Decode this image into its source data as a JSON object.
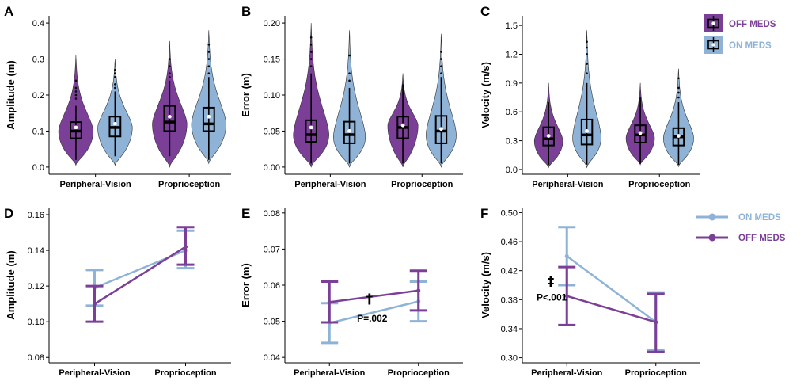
{
  "colors": {
    "off_meds": "#7B3F98",
    "on_meds": "#8FB3D7",
    "axis": "#000000",
    "dot": "#ffffff"
  },
  "legend_top": {
    "off_label": "OFF MEDS",
    "on_label": "ON MEDS"
  },
  "legend_bottom": {
    "on_label": "ON MEDS",
    "off_label": "OFF MEDS"
  },
  "chart_data": [
    {
      "panel": "A",
      "type": "violin",
      "ylabel": "Amplitude (m)",
      "ylim": [
        -0.02,
        0.42
      ],
      "yticks": [
        0.0,
        0.1,
        0.2,
        0.3,
        0.4
      ],
      "ytick_labels": [
        "0.0",
        "0.1",
        "0.2",
        "0.3",
        "0.4"
      ],
      "categories": [
        "Peripheral-Vision",
        "Proprioception"
      ],
      "series": [
        {
          "name": "OFF MEDS",
          "groups": [
            {
              "min": 0.005,
              "q1": 0.08,
              "median": 0.1,
              "q3": 0.125,
              "max": 0.31,
              "mean": 0.11,
              "wlo": 0.02,
              "whi": 0.17,
              "mode": 0.1,
              "width": 0.95,
              "outliers": [
                0.19,
                0.2,
                0.21,
                0.22,
                0.24
              ]
            },
            {
              "min": 0.0,
              "q1": 0.1,
              "median": 0.125,
              "q3": 0.17,
              "max": 0.35,
              "mean": 0.14,
              "wlo": 0.03,
              "whi": 0.24,
              "mode": 0.12,
              "width": 0.95,
              "outliers": [
                0.25,
                0.26,
                0.28,
                0.3
              ]
            }
          ]
        },
        {
          "name": "ON MEDS",
          "groups": [
            {
              "min": 0.005,
              "q1": 0.085,
              "median": 0.11,
              "q3": 0.14,
              "max": 0.3,
              "mean": 0.12,
              "wlo": 0.03,
              "whi": 0.21,
              "mode": 0.11,
              "width": 0.95,
              "outliers": [
                0.22,
                0.23,
                0.25,
                0.26,
                0.27
              ]
            },
            {
              "min": 0.01,
              "q1": 0.1,
              "median": 0.12,
              "q3": 0.165,
              "max": 0.38,
              "mean": 0.14,
              "wlo": 0.02,
              "whi": 0.25,
              "mode": 0.12,
              "width": 0.95,
              "outliers": [
                0.26,
                0.28,
                0.3,
                0.32,
                0.34
              ]
            }
          ]
        }
      ]
    },
    {
      "panel": "B",
      "type": "violin",
      "ylabel": "Error (m)",
      "ylim": [
        -0.01,
        0.21
      ],
      "yticks": [
        0.0,
        0.05,
        0.1,
        0.15,
        0.2
      ],
      "ytick_labels": [
        "0.00",
        "0.05",
        "0.10",
        "0.15",
        "0.20"
      ],
      "categories": [
        "Peripheral-Vision",
        "Proprioception"
      ],
      "series": [
        {
          "name": "OFF MEDS",
          "groups": [
            {
              "min": 0.0,
              "q1": 0.035,
              "median": 0.045,
              "q3": 0.065,
              "max": 0.2,
              "mean": 0.055,
              "wlo": 0.005,
              "whi": 0.13,
              "mode": 0.045,
              "width": 1.0,
              "outliers": [
                0.14,
                0.15,
                0.16,
                0.17,
                0.18
              ]
            },
            {
              "min": 0.0,
              "q1": 0.04,
              "median": 0.055,
              "q3": 0.07,
              "max": 0.13,
              "mean": 0.058,
              "wlo": 0.005,
              "whi": 0.115,
              "mode": 0.058,
              "width": 0.85,
              "outliers": []
            }
          ]
        },
        {
          "name": "ON MEDS",
          "groups": [
            {
              "min": 0.0,
              "q1": 0.033,
              "median": 0.045,
              "q3": 0.063,
              "max": 0.19,
              "mean": 0.05,
              "wlo": 0.005,
              "whi": 0.11,
              "mode": 0.042,
              "width": 0.9,
              "outliers": [
                0.12,
                0.13,
                0.155
              ]
            },
            {
              "min": 0.0,
              "q1": 0.033,
              "median": 0.05,
              "q3": 0.071,
              "max": 0.185,
              "mean": 0.053,
              "wlo": 0.005,
              "whi": 0.125,
              "mode": 0.045,
              "width": 0.85,
              "outliers": [
                0.13,
                0.14,
                0.15,
                0.16
              ]
            }
          ]
        }
      ]
    },
    {
      "panel": "C",
      "type": "violin",
      "ylabel": "Velocity (m/s)",
      "ylim": [
        -0.05,
        1.6
      ],
      "yticks": [
        0.0,
        0.3,
        0.6,
        0.9,
        1.2,
        1.5
      ],
      "ytick_labels": [
        "0.0",
        "0.3",
        "0.6",
        "0.9",
        "1.2",
        "1.5"
      ],
      "categories": [
        "Peripheral-Vision",
        "Proprioception"
      ],
      "series": [
        {
          "name": "OFF MEDS",
          "groups": [
            {
              "min": 0.02,
              "q1": 0.25,
              "median": 0.32,
              "q3": 0.44,
              "max": 0.9,
              "mean": 0.35,
              "wlo": 0.05,
              "whi": 0.7,
              "mode": 0.3,
              "width": 0.8,
              "outliers": []
            },
            {
              "min": 0.05,
              "q1": 0.28,
              "median": 0.36,
              "q3": 0.46,
              "max": 0.9,
              "mean": 0.38,
              "wlo": 0.06,
              "whi": 0.75,
              "mode": 0.33,
              "width": 0.8,
              "outliers": []
            }
          ]
        },
        {
          "name": "ON MEDS",
          "groups": [
            {
              "min": 0.02,
              "q1": 0.26,
              "median": 0.36,
              "q3": 0.52,
              "max": 1.45,
              "mean": 0.4,
              "wlo": 0.05,
              "whi": 0.9,
              "mode": 0.33,
              "width": 0.8,
              "outliers": [
                1.0,
                1.1,
                1.2,
                1.27,
                1.33
              ]
            },
            {
              "min": 0.03,
              "q1": 0.25,
              "median": 0.34,
              "q3": 0.43,
              "max": 1.05,
              "mean": 0.35,
              "wlo": 0.05,
              "whi": 0.7,
              "mode": 0.33,
              "width": 0.85,
              "outliers": [
                0.75,
                0.8,
                0.85,
                0.95
              ]
            }
          ]
        }
      ]
    },
    {
      "panel": "D",
      "type": "line",
      "ylabel": "Amplitude (m)",
      "ylim": [
        0.077,
        0.164
      ],
      "yticks": [
        0.08,
        0.1,
        0.12,
        0.14,
        0.16
      ],
      "ytick_labels": [
        "0.08",
        "0.10",
        "0.12",
        "0.14",
        "0.16"
      ],
      "categories": [
        "Peripheral-Vision",
        "Proprioception"
      ],
      "series": [
        {
          "name": "ON MEDS",
          "values": [
            0.119,
            0.14
          ],
          "err_low": [
            0.109,
            0.13
          ],
          "err_high": [
            0.129,
            0.151
          ]
        },
        {
          "name": "OFF MEDS",
          "values": [
            0.11,
            0.142
          ],
          "err_low": [
            0.1,
            0.132
          ],
          "err_high": [
            0.12,
            0.153
          ]
        }
      ],
      "annotations": []
    },
    {
      "panel": "E",
      "type": "line",
      "ylabel": "Error (m)",
      "ylim": [
        0.0385,
        0.0815
      ],
      "yticks": [
        0.04,
        0.05,
        0.06,
        0.07,
        0.08
      ],
      "ytick_labels": [
        "0.04",
        "0.05",
        "0.06",
        "0.07",
        "0.08"
      ],
      "categories": [
        "Peripheral-Vision",
        "Proprioception"
      ],
      "series": [
        {
          "name": "ON MEDS",
          "values": [
            0.0495,
            0.0555
          ],
          "err_low": [
            0.044,
            0.05
          ],
          "err_high": [
            0.055,
            0.061
          ]
        },
        {
          "name": "OFF MEDS",
          "values": [
            0.0553,
            0.0585
          ],
          "err_low": [
            0.0497,
            0.053
          ],
          "err_high": [
            0.061,
            0.064
          ]
        }
      ],
      "annotations": [
        {
          "text": "†",
          "x": 1.45,
          "y": 0.0558,
          "kind": "symbol"
        },
        {
          "text": "P=.002",
          "x": 1.48,
          "y": 0.0508,
          "kind": "text"
        }
      ]
    },
    {
      "panel": "F",
      "type": "line",
      "ylabel": "Velocity (m/s)",
      "ylim": [
        0.293,
        0.507
      ],
      "yticks": [
        0.3,
        0.34,
        0.38,
        0.42,
        0.46,
        0.5
      ],
      "ytick_labels": [
        "0.30",
        "0.34",
        "0.38",
        "0.42",
        "0.46",
        "0.50"
      ],
      "categories": [
        "Peripheral-Vision",
        "Proprioception"
      ],
      "series": [
        {
          "name": "ON MEDS",
          "values": [
            0.44,
            0.349
          ],
          "err_low": [
            0.4,
            0.31
          ],
          "err_high": [
            0.48,
            0.39
          ]
        },
        {
          "name": "OFF MEDS",
          "values": [
            0.385,
            0.349
          ],
          "err_low": [
            0.345,
            0.308
          ],
          "err_high": [
            0.425,
            0.388
          ]
        }
      ],
      "annotations": [
        {
          "text": "‡",
          "x": 0.82,
          "y": 0.404,
          "kind": "symbol"
        },
        {
          "text": "P<.001",
          "x": 0.83,
          "y": 0.383,
          "kind": "text"
        }
      ]
    }
  ]
}
